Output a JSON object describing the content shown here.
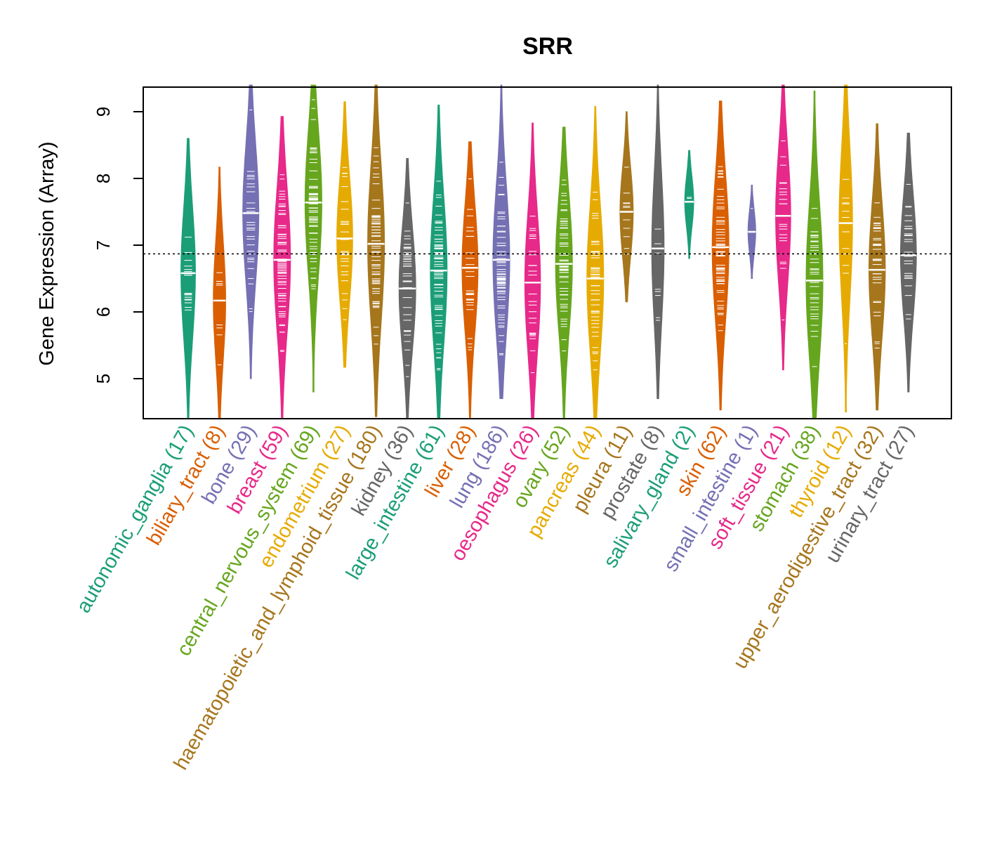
{
  "chart_data": {
    "type": "violin",
    "title": "SRR",
    "xlabel": "",
    "ylabel": "Gene Expression (Array)",
    "ylim": [
      4.4,
      9.4
    ],
    "yticks": [
      5,
      6,
      7,
      8,
      9
    ],
    "reference_line": 6.87,
    "reference_line_style": "dotted",
    "palette": [
      "#1B9E77",
      "#D95F02",
      "#7570B3",
      "#E7298A",
      "#66A61E",
      "#E6AB02",
      "#A6761D",
      "#666666"
    ],
    "categories": [
      {
        "name": "autonomic_ganglia",
        "n": 17,
        "label": "autonomic_ganglia (17)",
        "median": 6.58,
        "min": 4.4,
        "max": 8.6,
        "color": "#1B9E77"
      },
      {
        "name": "biliary_tract",
        "n": 8,
        "label": "biliary_tract (8)",
        "median": 6.17,
        "min": 4.4,
        "max": 8.17,
        "color": "#D95F02"
      },
      {
        "name": "bone",
        "n": 29,
        "label": "bone (29)",
        "median": 7.48,
        "min": 5.0,
        "max": 9.4,
        "color": "#7570B3"
      },
      {
        "name": "breast",
        "n": 59,
        "label": "breast (59)",
        "median": 6.78,
        "min": 4.4,
        "max": 8.93,
        "color": "#E7298A"
      },
      {
        "name": "central_nervous_system",
        "n": 69,
        "label": "central_nervous_system (69)",
        "median": 7.64,
        "min": 4.8,
        "max": 9.4,
        "color": "#66A61E"
      },
      {
        "name": "endometrium",
        "n": 27,
        "label": "endometrium (27)",
        "median": 7.1,
        "min": 5.17,
        "max": 9.15,
        "color": "#E6AB02"
      },
      {
        "name": "haematopoietic_and_lymphoid_tissue",
        "n": 180,
        "label": "haematopoietic_and_lymphoid_tissue (180)",
        "median": 7.02,
        "min": 4.43,
        "max": 9.4,
        "color": "#A6761D"
      },
      {
        "name": "kidney",
        "n": 36,
        "label": "kidney (36)",
        "median": 6.35,
        "min": 4.4,
        "max": 8.3,
        "color": "#666666"
      },
      {
        "name": "large_intestine",
        "n": 61,
        "label": "large_intestine (61)",
        "median": 6.62,
        "min": 4.4,
        "max": 9.1,
        "color": "#1B9E77"
      },
      {
        "name": "liver",
        "n": 28,
        "label": "liver (28)",
        "median": 6.66,
        "min": 4.4,
        "max": 8.55,
        "color": "#D95F02"
      },
      {
        "name": "lung",
        "n": 186,
        "label": "lung (186)",
        "median": 6.78,
        "min": 4.7,
        "max": 9.4,
        "color": "#7570B3"
      },
      {
        "name": "oesophagus",
        "n": 26,
        "label": "oesophagus (26)",
        "median": 6.44,
        "min": 4.4,
        "max": 8.83,
        "color": "#E7298A"
      },
      {
        "name": "ovary",
        "n": 52,
        "label": "ovary (52)",
        "median": 6.72,
        "min": 4.4,
        "max": 8.77,
        "color": "#66A61E"
      },
      {
        "name": "pancreas",
        "n": 44,
        "label": "pancreas (44)",
        "median": 6.5,
        "min": 4.4,
        "max": 9.08,
        "color": "#E6AB02"
      },
      {
        "name": "pleura",
        "n": 11,
        "label": "pleura (11)",
        "median": 7.5,
        "min": 6.15,
        "max": 9.0,
        "color": "#A6761D"
      },
      {
        "name": "prostate",
        "n": 8,
        "label": "prostate (8)",
        "median": 6.95,
        "min": 4.7,
        "max": 9.4,
        "color": "#666666"
      },
      {
        "name": "salivary_gland",
        "n": 2,
        "label": "salivary_gland (2)",
        "median": 7.65,
        "min": 6.8,
        "max": 8.42,
        "color": "#1B9E77"
      },
      {
        "name": "skin",
        "n": 62,
        "label": "skin (62)",
        "median": 6.97,
        "min": 4.53,
        "max": 9.16,
        "color": "#D95F02"
      },
      {
        "name": "small_intestine",
        "n": 1,
        "label": "small_intestine (1)",
        "median": 7.2,
        "min": 6.5,
        "max": 7.9,
        "color": "#7570B3"
      },
      {
        "name": "soft_tissue",
        "n": 21,
        "label": "soft_tissue (21)",
        "median": 7.44,
        "min": 5.13,
        "max": 9.4,
        "color": "#E7298A"
      },
      {
        "name": "stomach",
        "n": 38,
        "label": "stomach (38)",
        "median": 6.47,
        "min": 4.4,
        "max": 9.31,
        "color": "#66A61E"
      },
      {
        "name": "thyroid",
        "n": 12,
        "label": "thyroid (12)",
        "median": 7.33,
        "min": 4.5,
        "max": 9.4,
        "color": "#E6AB02"
      },
      {
        "name": "upper_aerodigestive_tract",
        "n": 32,
        "label": "upper_aerodigestive_tract (32)",
        "median": 6.63,
        "min": 4.53,
        "max": 8.82,
        "color": "#A6761D"
      },
      {
        "name": "urinary_tract",
        "n": 27,
        "label": "urinary_tract (27)",
        "median": 6.85,
        "min": 4.8,
        "max": 8.68,
        "color": "#666666"
      }
    ],
    "grid": false,
    "legend": "none"
  }
}
